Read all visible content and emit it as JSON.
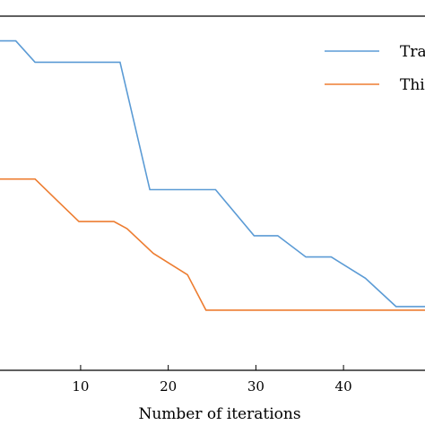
{
  "chart_data": {
    "type": "line",
    "xlabel": "Number of iterations",
    "ylabel": "",
    "title": "",
    "xlim": [
      0.8,
      49.3
    ],
    "ylim": [
      0,
      1
    ],
    "xticks": [
      10,
      20,
      30,
      40
    ],
    "grid": false,
    "legend_position": "top-right",
    "series": [
      {
        "name": "Tra",
        "color": "#5b9bd5",
        "x": [
          0.8,
          2.6,
          4.8,
          8.0,
          9.9,
          14.5,
          17.9,
          21.5,
          25.4,
          29.8,
          32.5,
          35.7,
          38.6,
          42.5,
          46.0,
          49.3
        ],
        "y": [
          0.93,
          0.93,
          0.87,
          0.87,
          0.87,
          0.87,
          0.51,
          0.51,
          0.51,
          0.38,
          0.38,
          0.32,
          0.32,
          0.26,
          0.18,
          0.18
        ]
      },
      {
        "name": "Thi",
        "color": "#ed7d31",
        "x": [
          0.8,
          4.8,
          7.3,
          9.8,
          13.8,
          15.3,
          18.3,
          22.2,
          24.3,
          26.6,
          38.6,
          49.3
        ],
        "y": [
          0.54,
          0.54,
          0.48,
          0.42,
          0.42,
          0.4,
          0.33,
          0.27,
          0.17,
          0.17,
          0.17,
          0.17
        ]
      }
    ]
  }
}
